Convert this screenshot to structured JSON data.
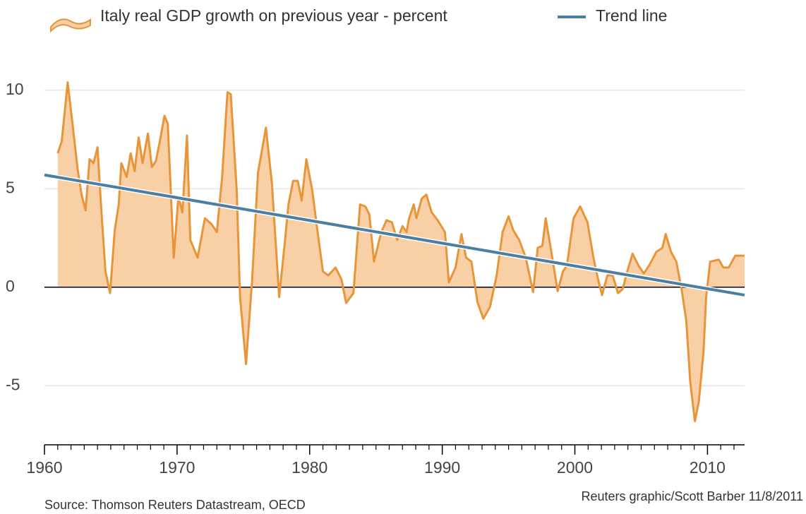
{
  "chart_data": {
    "type": "area",
    "series": [
      {
        "name": "Italy real GDP growth on previous year - percent",
        "color": "#e8953a",
        "fill": "#f9cfa6",
        "x": [
          1961.0,
          1961.3,
          1961.75,
          1962.2,
          1962.5,
          1962.8,
          1963.1,
          1963.4,
          1963.7,
          1964.0,
          1964.3,
          1964.6,
          1964.95,
          1965.3,
          1965.6,
          1965.8,
          1966.2,
          1966.5,
          1966.8,
          1967.1,
          1967.4,
          1967.8,
          1968.1,
          1968.4,
          1968.7,
          1969.05,
          1969.3,
          1969.75,
          1970.1,
          1970.4,
          1970.75,
          1971.0,
          1971.55,
          1972.1,
          1972.6,
          1973.0,
          1973.4,
          1973.8,
          1974.05,
          1974.5,
          1974.75,
          1975.2,
          1975.65,
          1976.1,
          1976.7,
          1977.15,
          1977.7,
          1978.1,
          1978.4,
          1978.75,
          1979.1,
          1979.4,
          1979.75,
          1980.2,
          1980.6,
          1981.0,
          1981.4,
          1981.95,
          1982.4,
          1982.75,
          1983.3,
          1983.8,
          1984.2,
          1984.5,
          1984.85,
          1985.4,
          1985.8,
          1986.2,
          1986.6,
          1987.0,
          1987.3,
          1987.5,
          1987.85,
          1988.05,
          1988.45,
          1988.8,
          1989.2,
          1989.65,
          1990.2,
          1990.5,
          1991.0,
          1991.45,
          1991.8,
          1992.2,
          1992.65,
          1993.1,
          1993.6,
          1994.1,
          1994.55,
          1995.0,
          1995.35,
          1995.8,
          1996.3,
          1996.85,
          1997.2,
          1997.55,
          1997.8,
          1998.2,
          1998.7,
          1999.1,
          1999.4,
          1999.9,
          2000.4,
          2000.95,
          2001.4,
          2001.75,
          2002.05,
          2002.45,
          2002.85,
          2003.25,
          2003.6,
          2003.95,
          2004.35,
          2004.8,
          2005.2,
          2005.6,
          2006.15,
          2006.6,
          2006.85,
          2007.25,
          2007.65,
          2008.05,
          2008.4,
          2008.7,
          2009.05,
          2009.35,
          2009.7,
          2009.9,
          2010.2,
          2010.85,
          2011.2,
          2011.6,
          2012.1,
          2012.8
        ],
        "values": [
          6.8,
          7.4,
          10.4,
          7.8,
          6.0,
          4.7,
          3.9,
          6.5,
          6.3,
          7.1,
          3.8,
          0.8,
          -0.3,
          2.9,
          4.2,
          6.3,
          5.6,
          6.8,
          5.9,
          7.6,
          6.3,
          7.8,
          6.1,
          6.4,
          7.4,
          8.7,
          8.3,
          1.5,
          4.6,
          3.8,
          7.7,
          2.4,
          1.5,
          3.5,
          3.2,
          2.8,
          5.6,
          9.9,
          9.8,
          4.9,
          -0.5,
          -3.9,
          0.25,
          5.8,
          8.1,
          5.3,
          -0.5,
          2.1,
          4.2,
          5.4,
          5.4,
          4.4,
          6.5,
          4.9,
          2.8,
          0.8,
          0.6,
          1.0,
          0.4,
          -0.8,
          -0.3,
          4.2,
          4.1,
          3.7,
          1.3,
          2.8,
          3.4,
          3.3,
          2.4,
          3.1,
          2.8,
          3.5,
          4.2,
          3.5,
          4.5,
          4.7,
          3.8,
          3.4,
          2.8,
          0.25,
          1.0,
          2.7,
          1.5,
          1.3,
          -0.75,
          -1.6,
          -1.0,
          0.6,
          2.8,
          3.6,
          2.9,
          2.4,
          1.5,
          -0.25,
          2.0,
          2.1,
          3.5,
          1.9,
          -0.2,
          0.8,
          1.1,
          3.5,
          4.1,
          3.3,
          1.5,
          0.4,
          -0.4,
          0.6,
          0.6,
          -0.3,
          -0.1,
          0.8,
          1.7,
          1.1,
          0.7,
          1.1,
          1.8,
          2.0,
          2.7,
          1.8,
          1.3,
          -0.1,
          -1.7,
          -4.8,
          -6.8,
          -5.8,
          -3.3,
          -0.5,
          1.3,
          1.4,
          1.0,
          1.0,
          1.6,
          1.6
        ]
      },
      {
        "name": "Trend line",
        "color": "#4a7ea3",
        "x": [
          1960,
          2012.8
        ],
        "values": [
          5.7,
          -0.4
        ]
      }
    ],
    "xlim": [
      1960,
      2012.8
    ],
    "ylim": [
      -8,
      12
    ],
    "xticks": [
      1960,
      1970,
      1980,
      1990,
      2000,
      2010
    ],
    "xticks_minor": [
      1961,
      1962,
      1963,
      1964,
      1965,
      1966,
      1967,
      1968,
      1969,
      1971,
      1972,
      1973,
      1974,
      1975,
      1976,
      1977,
      1978,
      1979,
      1981,
      1982,
      1983,
      1984,
      1985,
      1986,
      1987,
      1988,
      1989,
      1991,
      1992,
      1993,
      1994,
      1995,
      1996,
      1997,
      1998,
      1999,
      2001,
      2002,
      2003,
      2004,
      2005,
      2006,
      2007,
      2008,
      2009,
      2011,
      2012
    ],
    "yticks": [
      -5,
      0,
      5,
      10
    ],
    "grid": true,
    "source": "Source: Thomson Reuters Datastream, OECD",
    "credit": "Reuters graphic/Scott Barber 11/8/2011"
  }
}
